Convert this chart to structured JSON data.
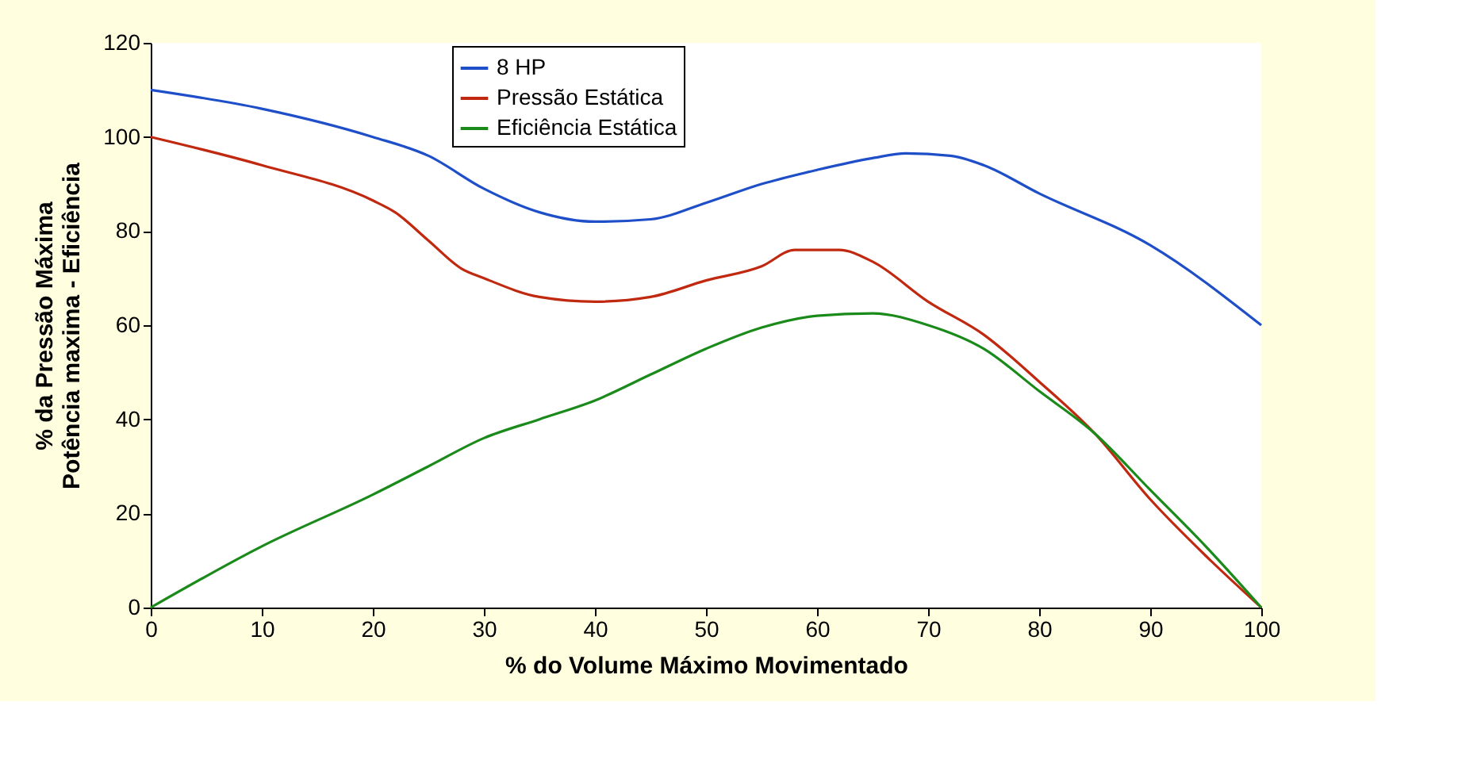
{
  "chart_data": {
    "type": "line",
    "xlabel": "% do Volume Máximo Movimentado",
    "ylabel": "% da Pressão Máxima\nPotência maxima - Eficiência",
    "xlim": [
      0,
      100
    ],
    "xticks": [
      0,
      10,
      20,
      30,
      40,
      50,
      60,
      70,
      80,
      90,
      100
    ],
    "ylim": [
      0,
      120
    ],
    "yticks": [
      0,
      20,
      40,
      60,
      80,
      100,
      120
    ],
    "grid": false,
    "legend": "top",
    "marker": "none",
    "line_style": "solid",
    "series": [
      {
        "name": "8 HP",
        "color": "#1f4fc8",
        "x": [
          0,
          10,
          20,
          25,
          30,
          35,
          40,
          45,
          50,
          55,
          60,
          65,
          68,
          72,
          75,
          80,
          90,
          100
        ],
        "values": [
          110,
          106,
          100,
          96,
          89,
          84,
          82,
          82.5,
          86,
          90,
          93,
          95.5,
          96.5,
          96,
          94,
          88,
          77,
          60
        ]
      },
      {
        "name": "Pressão Estática",
        "color": "#c0280f",
        "x": [
          0,
          10,
          20,
          22,
          25,
          28,
          30,
          35,
          40,
          45,
          50,
          55,
          58,
          62,
          65,
          70,
          75,
          80,
          85,
          90,
          95,
          100
        ],
        "values": [
          100,
          94,
          86.5,
          84,
          78,
          72,
          70,
          66,
          65,
          66,
          69.5,
          72.5,
          76,
          76,
          73.5,
          65,
          58,
          48,
          37,
          23,
          11,
          0
        ]
      },
      {
        "name": "Eficiência Estática",
        "color": "#1a8a1a",
        "x": [
          0,
          10,
          20,
          25,
          30,
          35,
          40,
          45,
          50,
          55,
          60,
          65,
          70,
          75,
          80,
          85,
          90,
          95,
          100
        ],
        "values": [
          0,
          13,
          24,
          30,
          36,
          40,
          44,
          49.5,
          55,
          59.5,
          62,
          62.5,
          60,
          55,
          46,
          37,
          25,
          13,
          0
        ]
      }
    ]
  }
}
